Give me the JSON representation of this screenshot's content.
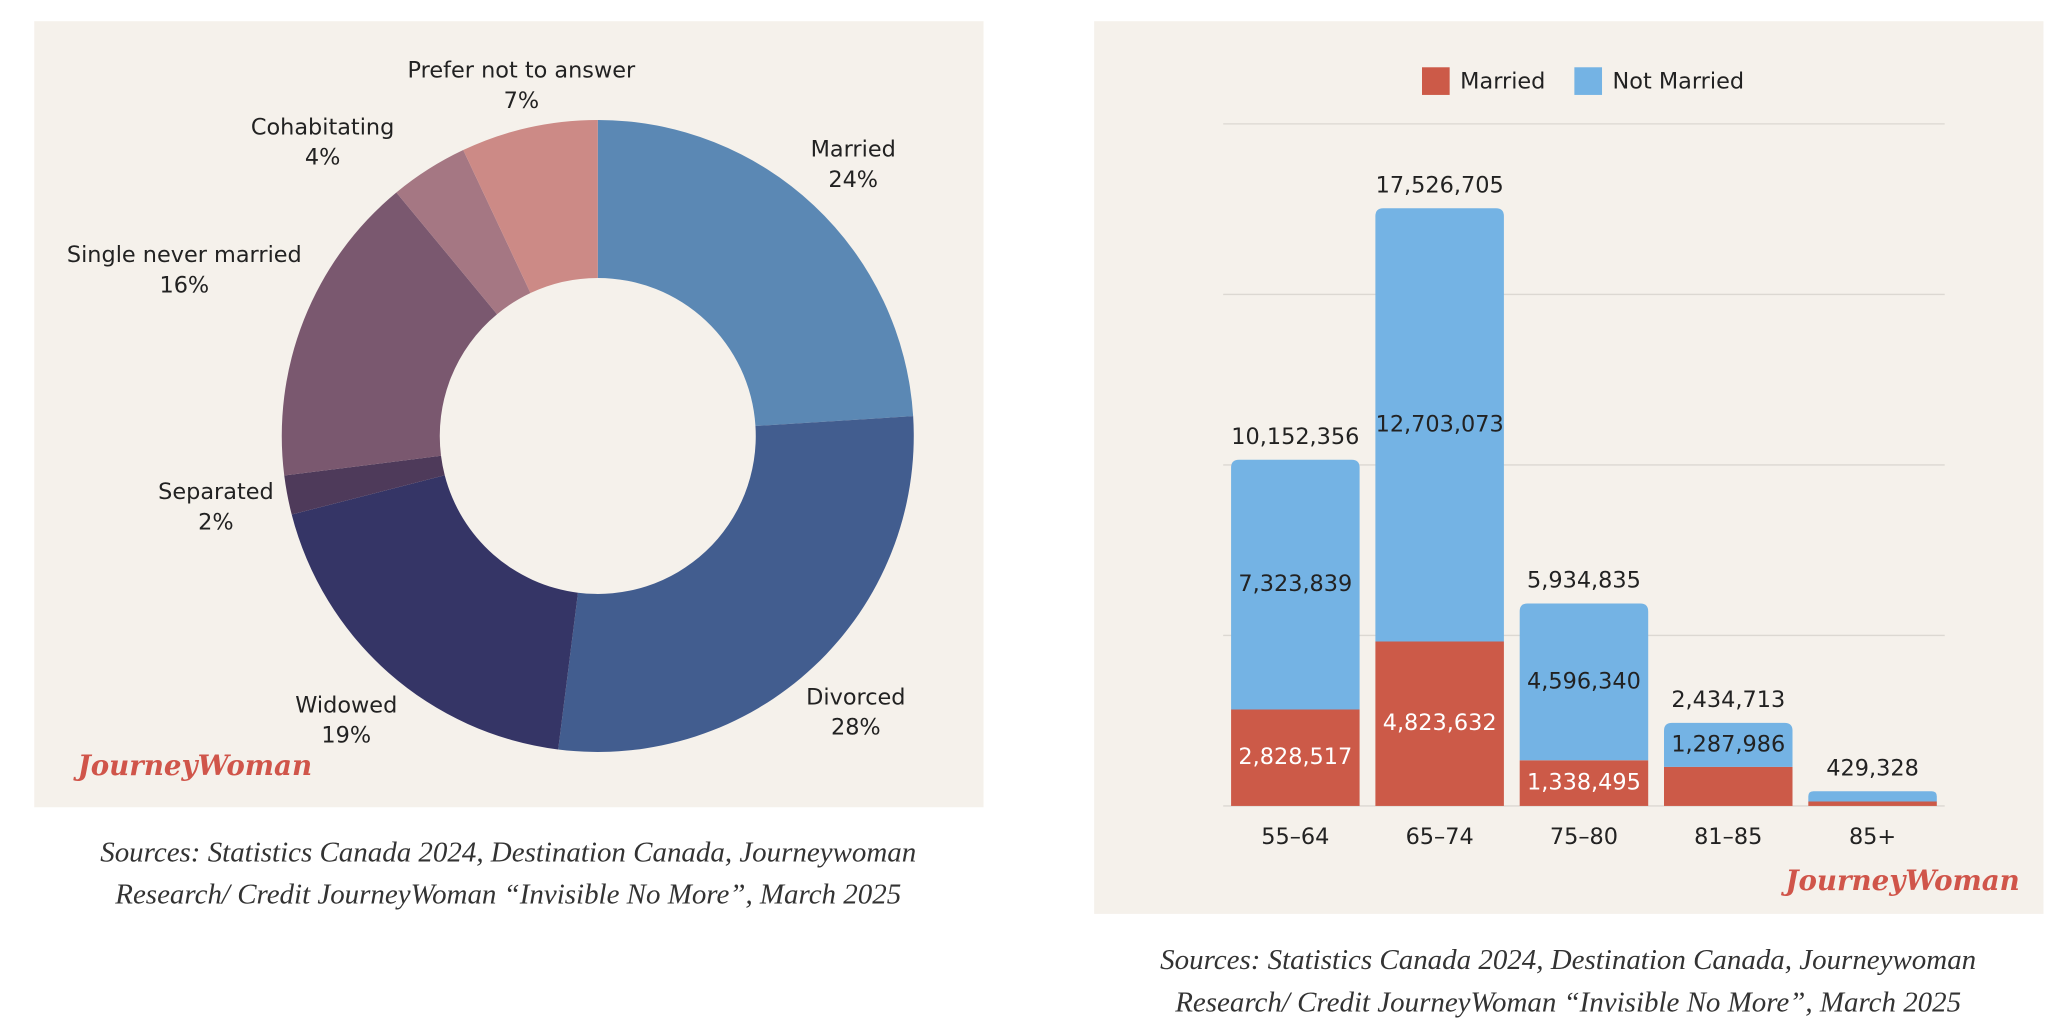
{
  "chart_data": [
    {
      "type": "pie",
      "categories": [
        "Married",
        "Divorced",
        "Widowed",
        "Separated",
        "Single never married",
        "Cohabitating",
        "Prefer not to answer"
      ],
      "values": [
        24,
        28,
        19,
        2,
        16,
        4,
        7
      ],
      "value_labels": [
        "24%",
        "28%",
        "19%",
        "2%",
        "16%",
        "4%",
        "7%"
      ],
      "colors": [
        "#5b88b4",
        "#425d8f",
        "#353566",
        "#4e3a5a",
        "#7a586f",
        "#a57783",
        "#cc8a86"
      ],
      "logo": "JourneyWoman",
      "source": [
        "Sources: Statistics Canada 2024, Destination Canada, Journeywoman",
        "Research/ Credit JourneyWoman “Invisible No More”, March 2025"
      ]
    },
    {
      "type": "stacked_bar",
      "categories": [
        "55–64",
        "65–74",
        "75–80",
        "81–85",
        "85+"
      ],
      "series": [
        {
          "name": "Married",
          "color": "#cc5a48",
          "values": [
            2828517,
            4823632,
            1338495,
            1146727,
            130000
          ],
          "value_labels": [
            "2,828,517",
            "4,823,632",
            "1,338,495",
            null,
            null
          ]
        },
        {
          "name": "Not Married",
          "color": "#74b3e4",
          "values": [
            7323839,
            12703073,
            4596340,
            1287986,
            299328
          ],
          "value_labels": [
            "7,323,839",
            "12,703,073",
            "4,596,340",
            "1,287,986",
            null
          ]
        }
      ],
      "total_labels": [
        "10,152,356",
        "17,526,705",
        "5,934,835",
        "2,434,713",
        "429,328"
      ],
      "ylim": [
        0,
        20000000
      ],
      "yticks": [
        0,
        5000000,
        10000000,
        15000000,
        20000000
      ],
      "grid": true,
      "legend": "top",
      "logo": "JourneyWoman",
      "source": [
        "Sources: Statistics Canada 2024, Destination Canada, Journeywoman",
        "Research/ Credit JourneyWoman “Invisible No More”, March 2025"
      ]
    }
  ]
}
